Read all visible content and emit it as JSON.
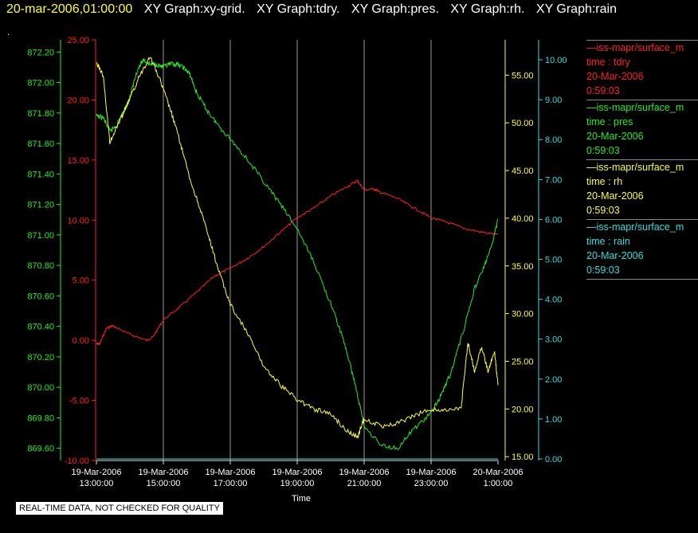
{
  "header": {
    "timestamp": "20-mar-2006,01:00:00",
    "tabs": [
      "XY Graph:xy-grid.",
      "XY Graph:tdry.",
      "XY Graph:pres.",
      "XY Graph:rh.",
      "XY Graph:rain"
    ],
    "dot": "."
  },
  "note": "REAL-TIME DATA, NOT CHECKED FOR QUALITY",
  "legend": [
    {
      "name": "—iss-mapr/surface_m",
      "var": "time : tdry",
      "date": "20-Mar-2006",
      "time": "0:59:03",
      "color": "#ff2020"
    },
    {
      "name": "—iss-mapr/surface_m",
      "var": "time : pres",
      "date": "20-Mar-2006",
      "time": "0:59:03",
      "color": "#22ee22"
    },
    {
      "name": "—iss-mapr/surface_m",
      "var": "time : rh",
      "date": "20-Mar-2006",
      "time": "0:59:03",
      "color": "#ffff33"
    },
    {
      "name": "—iss-mapr/surface_m",
      "var": "time : rain",
      "date": "20-Mar-2006",
      "time": "0:59:03",
      "color": "#33dddd"
    }
  ],
  "chart_data": {
    "type": "line",
    "xlabel": "Time",
    "x_ticks": [
      {
        "d": "19-Mar-2006",
        "t": "13:00:00"
      },
      {
        "d": "19-Mar-2006",
        "t": "15:00:00"
      },
      {
        "d": "19-Mar-2006",
        "t": "17:00:00"
      },
      {
        "d": "19-Mar-2006",
        "t": "19:00:00"
      },
      {
        "d": "19-Mar-2006",
        "t": "21:00:00"
      },
      {
        "d": "19-Mar-2006",
        "t": "23:00:00"
      },
      {
        "d": "20-Mar-2006",
        "t": "1:00:00"
      }
    ],
    "x_range_hours": [
      13,
      25
    ],
    "grid": true,
    "axes": {
      "pres": {
        "ticks": [
          "869.60",
          "869.80",
          "870.00",
          "870.20",
          "870.40",
          "870.60",
          "870.80",
          "871.00",
          "871.20",
          "871.40",
          "871.60",
          "871.80",
          "872.00",
          "872.20"
        ],
        "range": [
          869.52,
          872.28
        ],
        "color": "#22ee22"
      },
      "tdry": {
        "ticks": [
          "-10.00",
          "-5.00",
          "0.00",
          "5.00",
          "10.00",
          "15.00",
          "20.00",
          "25.00"
        ],
        "range": [
          -10,
          25
        ],
        "color": "#ff2020"
      },
      "rh": {
        "ticks": [
          "15.00",
          "20.00",
          "25.00",
          "30.00",
          "35.00",
          "40.00",
          "45.00",
          "50.00",
          "55.00"
        ],
        "range": [
          14.6,
          58.7
        ],
        "color": "#ffff33"
      },
      "rain": {
        "ticks": [
          "0.00",
          "1.00",
          "2.00",
          "3.00",
          "4.00",
          "5.00",
          "6.00",
          "7.00",
          "8.00",
          "9.00",
          "10.00"
        ],
        "range": [
          -0.04,
          10.5
        ],
        "color": "#33dddd"
      }
    },
    "series": [
      {
        "key": "tdry",
        "color": "#ff2020",
        "x": [
          13.0,
          13.1,
          13.3,
          13.5,
          14.0,
          14.5,
          14.7,
          15.0,
          15.5,
          16.0,
          16.5,
          17.0,
          17.5,
          18.0,
          18.5,
          19.0,
          19.5,
          20.0,
          20.5,
          20.8,
          21.0,
          21.3,
          21.5,
          22.0,
          22.5,
          23.0,
          23.5,
          24.0,
          24.5,
          25.0
        ],
        "values": [
          -0.3,
          -0.3,
          1.0,
          1.2,
          0.5,
          0.0,
          0.3,
          1.7,
          2.8,
          4.0,
          5.3,
          6.0,
          6.8,
          7.8,
          9.0,
          10.2,
          11.0,
          12.0,
          12.8,
          13.3,
          12.5,
          12.6,
          12.3,
          11.8,
          11.0,
          10.2,
          9.8,
          9.3,
          9.0,
          8.8
        ]
      },
      {
        "key": "pres",
        "color": "#22ee22",
        "x": [
          13.0,
          13.2,
          13.4,
          13.6,
          13.8,
          14.0,
          14.2,
          14.4,
          14.6,
          14.8,
          15.0,
          15.2,
          15.4,
          15.6,
          15.8,
          16.0,
          16.3,
          16.6,
          17.0,
          17.5,
          18.0,
          18.5,
          19.0,
          19.5,
          20.0,
          20.4,
          20.7,
          21.0,
          21.5,
          22.0,
          22.5,
          23.0,
          23.3,
          23.6,
          24.0,
          24.3,
          24.6,
          24.8,
          25.0
        ],
        "values": [
          871.78,
          871.77,
          871.68,
          871.72,
          871.8,
          871.9,
          872.07,
          872.15,
          872.12,
          872.12,
          872.1,
          872.12,
          872.12,
          872.1,
          872.05,
          871.93,
          871.82,
          871.73,
          871.63,
          871.5,
          871.35,
          871.2,
          871.04,
          870.82,
          870.55,
          870.3,
          870.05,
          869.75,
          869.62,
          869.6,
          869.73,
          869.83,
          869.95,
          870.1,
          870.4,
          870.65,
          870.8,
          870.92,
          871.1
        ]
      },
      {
        "key": "rh",
        "color": "#ffff33",
        "x": [
          13.0,
          13.2,
          13.4,
          13.6,
          13.8,
          14.0,
          14.3,
          14.6,
          14.9,
          15.2,
          15.5,
          15.8,
          16.1,
          16.4,
          16.7,
          17.0,
          17.5,
          18.0,
          18.5,
          19.0,
          19.5,
          20.0,
          20.4,
          20.8,
          21.0,
          21.5,
          22.0,
          22.5,
          23.0,
          23.5,
          23.9,
          24.1,
          24.3,
          24.5,
          24.7,
          24.9,
          25.0
        ],
        "values": [
          56.3,
          55.0,
          48.0,
          49.5,
          51.0,
          52.5,
          55.0,
          57.0,
          54.5,
          51.5,
          48.0,
          44.0,
          41.0,
          37.5,
          34.0,
          31.0,
          28.0,
          24.5,
          22.5,
          21.0,
          20.0,
          19.5,
          18.0,
          17.0,
          19.0,
          18.2,
          18.5,
          19.3,
          20.0,
          19.8,
          20.2,
          27.0,
          24.0,
          26.5,
          24.0,
          26.0,
          22.5
        ]
      },
      {
        "key": "rain",
        "color": "#33dddd",
        "x": [
          13.0,
          25.0
        ],
        "values": [
          0.0,
          0.0
        ]
      }
    ]
  }
}
